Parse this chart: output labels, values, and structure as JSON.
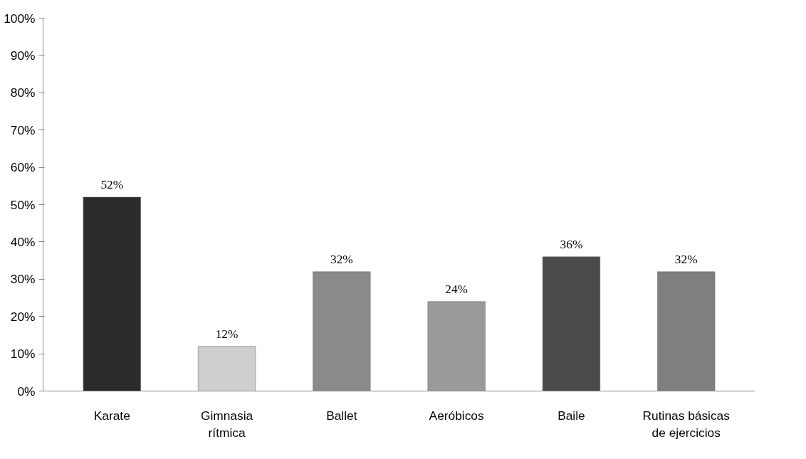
{
  "chart_data": {
    "type": "bar",
    "categories": [
      "Karate",
      "Gimnasia rítmica",
      "Ballet",
      "Aeróbicos",
      "Baile",
      "Rutinas básicas de ejercicios"
    ],
    "values": [
      52,
      12,
      32,
      24,
      36,
      32
    ],
    "colors": [
      "#2b2b2b",
      "#cfcfcf",
      "#8a8a8a",
      "#9a9a9a",
      "#4a4a4a",
      "#7f7f7f"
    ],
    "value_labels": [
      "52%",
      "12%",
      "32%",
      "24%",
      "36%",
      "32%"
    ],
    "ylim": [
      0,
      100
    ],
    "yticks": [
      {
        "value": 0,
        "label": "0%"
      },
      {
        "value": 10,
        "label": "10%"
      },
      {
        "value": 20,
        "label": "20%"
      },
      {
        "value": 30,
        "label": "30%"
      },
      {
        "value": 40,
        "label": "40%"
      },
      {
        "value": 50,
        "label": "50%"
      },
      {
        "value": 60,
        "label": "60%"
      },
      {
        "value": 70,
        "label": "70%"
      },
      {
        "value": 80,
        "label": "80%"
      },
      {
        "value": 90,
        "label": "90%"
      },
      {
        "value": 100,
        "label": "100%"
      }
    ],
    "grid": false
  }
}
